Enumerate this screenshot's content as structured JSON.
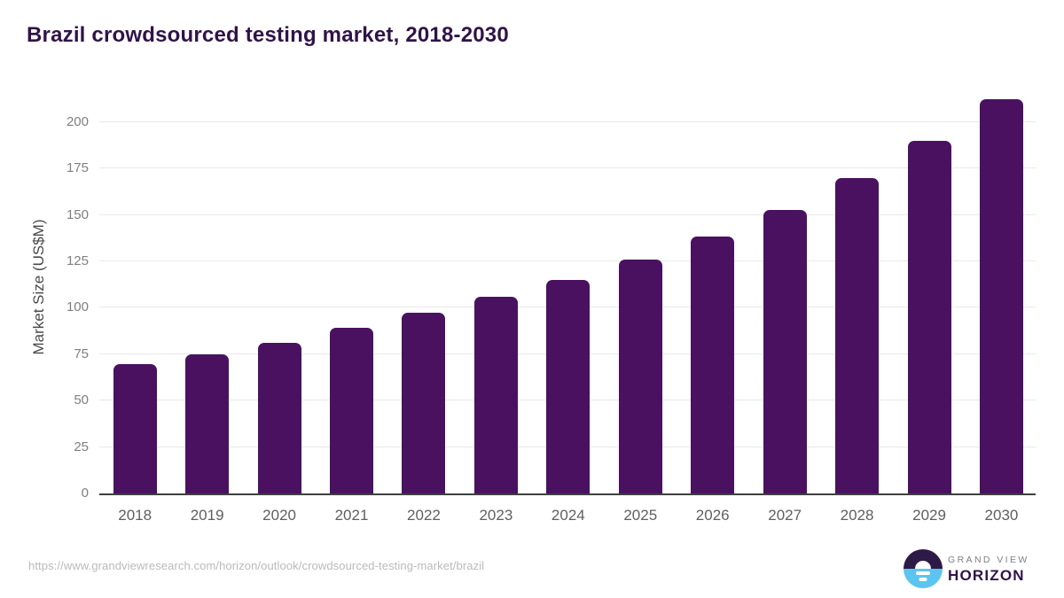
{
  "chart": {
    "title": "Brazil crowdsourced testing market, 2018-2030",
    "ylabel": "Market Size (US$M)"
  },
  "chart_data": {
    "type": "bar",
    "title": "Brazil crowdsourced testing market, 2018-2030",
    "xlabel": "",
    "ylabel": "Market Size (US$M)",
    "categories": [
      "2018",
      "2019",
      "2020",
      "2021",
      "2022",
      "2023",
      "2024",
      "2025",
      "2026",
      "2027",
      "2028",
      "2029",
      "2030"
    ],
    "values": [
      69.5,
      75.0,
      81.3,
      89.4,
      97.1,
      105.7,
      115.2,
      126.0,
      138.4,
      152.6,
      169.8,
      189.7,
      212.4
    ],
    "yticks": [
      0,
      25,
      50,
      75,
      100,
      125,
      150,
      175,
      200
    ],
    "ylim": [
      0,
      218
    ],
    "grid": true,
    "legend_position": "none",
    "bar_color": "#4a1161"
  },
  "footer": {
    "source_url": "https://www.grandviewresearch.com/horizon/outlook/crowdsourced-testing-market/brazil",
    "logo": {
      "line1": "GRAND VIEW",
      "line2": "HORIZON",
      "mark_icon": "sunrise-horizon-icon"
    }
  },
  "colors": {
    "bar": "#4a1161",
    "title": "#301349",
    "gridline": "#e9e9ec",
    "axis_line": "#3f3f3f",
    "y_tick_label": "#7f7f7f",
    "x_tick_label": "#5f5f5f",
    "y_axis_title": "#4a4a4a",
    "source_url": "#b9babe",
    "logo_blue": "#5bc5f0",
    "logo_dark_purple": "#2e1a47",
    "brand_gray": "#7e7e86",
    "background": "#ffffff"
  }
}
